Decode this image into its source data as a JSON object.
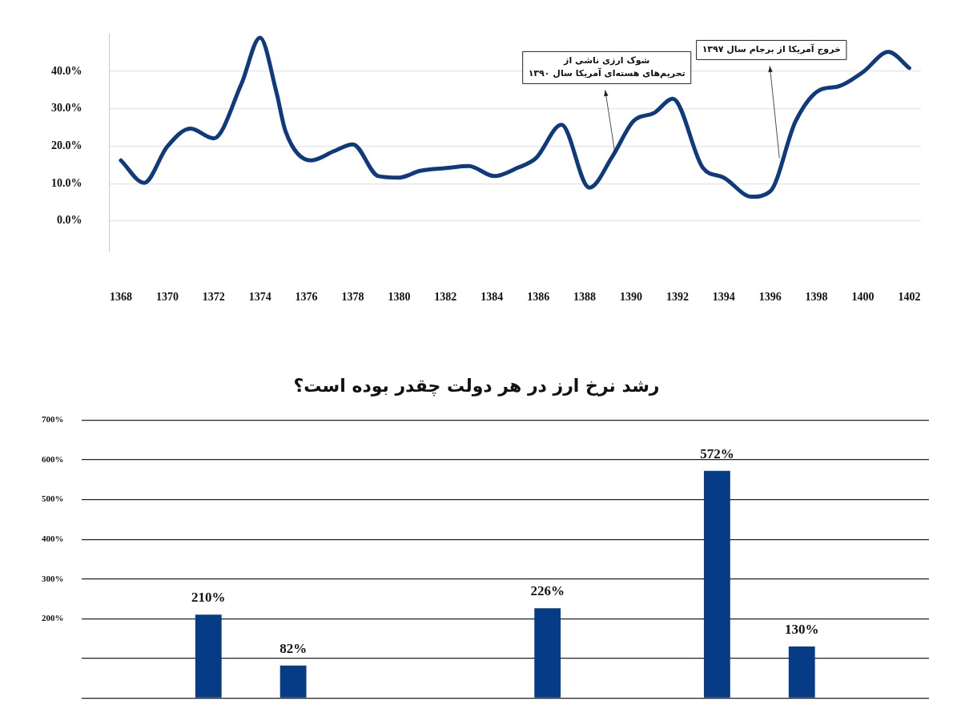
{
  "chart_data": [
    {
      "type": "line",
      "x": [
        1368,
        1369,
        1370,
        1371,
        1372,
        1373.2,
        1374,
        1374.7,
        1375.1,
        1376.2,
        1377.2,
        1378,
        1379.1,
        1380,
        1380.9,
        1382.1,
        1383,
        1384.1,
        1385.1,
        1385.9,
        1387,
        1388.2,
        1389.2,
        1390.1,
        1391,
        1391.8,
        1393.1,
        1394,
        1395.2,
        1396,
        1397.1,
        1398.2,
        1398.9,
        1400,
        1401.1,
        1402
      ],
      "series": [
        {
          "color": "#103a7e",
          "values": [
            16.2,
            10.2,
            19.9,
            24.7,
            22.1,
            36.7,
            49,
            34.6,
            24,
            16.2,
            18.7,
            20.5,
            12,
            11.6,
            13.4,
            14.2,
            14.7,
            12,
            14.2,
            16.8,
            25.7,
            8.9,
            17.3,
            26.7,
            28.9,
            32.7,
            14.2,
            11.6,
            6.5,
            7.9,
            26.7,
            35.2,
            35.9,
            39.8,
            45.2,
            40.9
          ]
        }
      ],
      "xlim": [
        1367.5,
        1402.5
      ],
      "xticks": [
        1368,
        1370,
        1372,
        1374,
        1376,
        1378,
        1380,
        1382,
        1384,
        1386,
        1388,
        1390,
        1392,
        1394,
        1396,
        1398,
        1400,
        1402
      ],
      "ylim": [
        -8,
        50
      ],
      "yticks": [
        {
          "value": 0,
          "label": "0.0%"
        },
        {
          "value": 10,
          "label": "10.0%"
        },
        {
          "value": 20,
          "label": "20.0%"
        },
        {
          "value": 30,
          "label": "30.0%"
        },
        {
          "value": 40,
          "label": "40.0%"
        }
      ],
      "grid": "y",
      "marker": "none",
      "line_style": "solid",
      "legend": false,
      "annotations": [
        {
          "text": "شوک ارزی ناشی از\nتحریم‌های هسته‌ای آمریکا سال ۱۳۹۰",
          "x": 1389.3,
          "y": 18.4
        },
        {
          "text": "خروج آمریکا از برجام سال ۱۳۹۷",
          "x": 1396.4,
          "y": 16.8
        }
      ]
    },
    {
      "type": "bar",
      "title": "رشد نرخ ارز در هر دولت چقدر بوده است؟",
      "categories": [
        null,
        null,
        null,
        null,
        null,
        null,
        null,
        null,
        null,
        null
      ],
      "series": [
        {
          "color": "#063c85",
          "values": [
            null,
            210,
            82,
            null,
            null,
            226,
            null,
            572,
            130,
            null
          ]
        }
      ],
      "value_labels": [
        null,
        "210%",
        "82%",
        null,
        null,
        "226%",
        null,
        "572%",
        "130%",
        null
      ],
      "ylim": [
        0,
        700
      ],
      "yticks": [
        {
          "value": 0,
          "label": null
        },
        {
          "value": 100,
          "label": null
        },
        {
          "value": 200,
          "label": "200%"
        },
        {
          "value": 300,
          "label": "300%"
        },
        {
          "value": 400,
          "label": "400%"
        },
        {
          "value": 500,
          "label": "500%"
        },
        {
          "value": 600,
          "label": "600%"
        },
        {
          "value": 700,
          "label": "700%"
        }
      ],
      "grid": "y",
      "legend": false,
      "tick_labels": "y"
    }
  ]
}
